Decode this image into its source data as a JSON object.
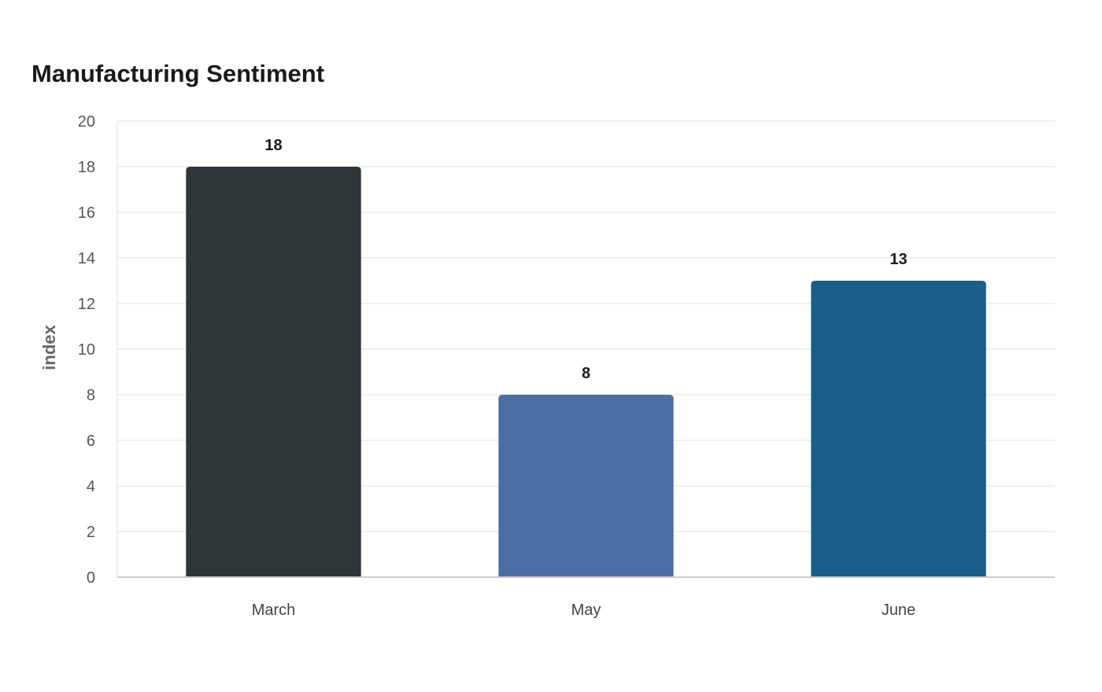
{
  "chart_data": {
    "type": "bar",
    "title": "Manufacturing Sentiment",
    "xlabel": "",
    "ylabel": "index",
    "categories": [
      "March",
      "May",
      "June"
    ],
    "values": [
      18,
      8,
      13
    ],
    "colors": [
      "#2e3538",
      "#4a6fa5",
      "#18608a"
    ],
    "ylim": [
      0,
      20
    ],
    "yticks": [
      0,
      2,
      4,
      6,
      8,
      10,
      12,
      14,
      16,
      18,
      20
    ],
    "grid": true,
    "legend": "none"
  }
}
